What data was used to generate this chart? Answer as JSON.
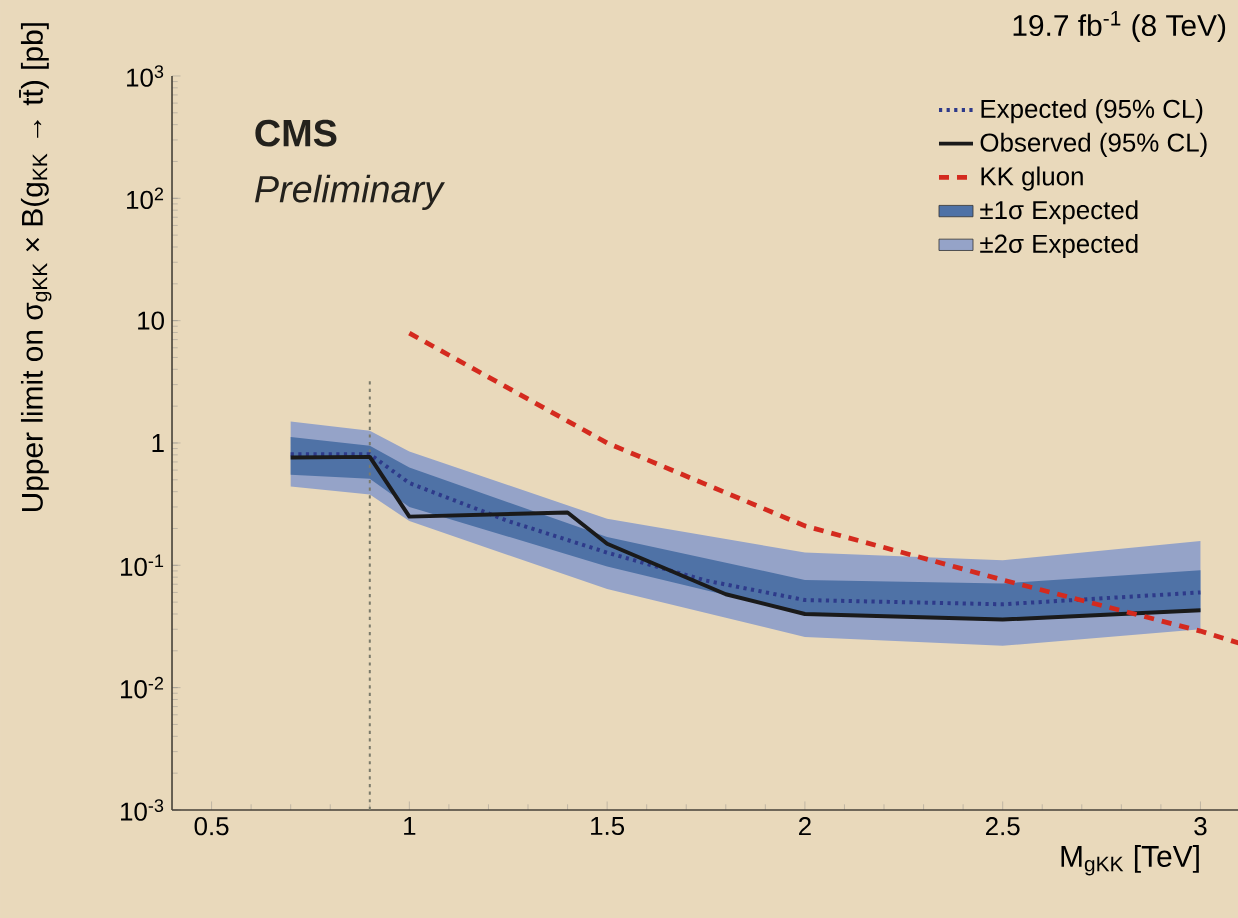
{
  "chart_data": {
    "type": "line",
    "title": "19.7 fb$^{-1}$ (8 TeV)",
    "xlabel": "M$_{gKK}$ [TeV]",
    "ylabel": "Upper limit on σ$_{gKK}$ × B(g$_{KK}$ → tt̄) [pb]",
    "annotations": [
      "CMS",
      "Preliminary"
    ],
    "log": "y",
    "xlim": [
      0.4,
      3.1
    ],
    "ylim": [
      0.001,
      1000
    ],
    "xticks": [
      0.5,
      1,
      1.5,
      2,
      2.5,
      3
    ],
    "yticks": [
      {
        "value": 0.001,
        "label": "10$^{-3}$"
      },
      {
        "value": 0.01,
        "label": "10$^{-2}$"
      },
      {
        "value": 0.1,
        "label": "10$^{-1}$"
      },
      {
        "value": 1,
        "label": "1"
      },
      {
        "value": 10,
        "label": "10"
      },
      {
        "value": 100,
        "label": "10$^{2}$"
      },
      {
        "value": 1000,
        "label": "10$^{3}$"
      }
    ],
    "legend": "top right",
    "grid": false,
    "ref_lines": [
      {
        "axis": "x",
        "value": 0.9,
        "color": "#7a7a6a",
        "line_style": "dotted"
      }
    ],
    "series": [
      {
        "name": "Expected (95% CL)",
        "type": "line",
        "color": "#2e3a8a",
        "line_style": "dotted",
        "x": [
          0.7,
          0.9,
          1.0,
          1.25,
          1.5,
          1.75,
          2.0,
          2.5,
          3.0
        ],
        "values": [
          0.81,
          0.81,
          0.47,
          0.23,
          0.127,
          0.075,
          0.052,
          0.048,
          0.06
        ]
      },
      {
        "name": "Observed (95% CL)",
        "type": "line",
        "color": "#1a1a1a",
        "line_style": "solid",
        "x": [
          0.7,
          0.9,
          1.0,
          1.4,
          1.5,
          1.8,
          2.0,
          2.5,
          3.0
        ],
        "values": [
          0.76,
          0.77,
          0.25,
          0.27,
          0.15,
          0.058,
          0.04,
          0.036,
          0.043
        ]
      },
      {
        "name": "KK gluon",
        "type": "line",
        "color": "#d42a1e",
        "line_style": "dashed",
        "x": [
          1.0,
          1.5,
          2.0,
          2.5,
          3.0,
          3.1
        ],
        "values": [
          7.9,
          1.0,
          0.21,
          0.076,
          0.029,
          0.023
        ]
      },
      {
        "name": "±1σ Expected",
        "color": "#4f72a6",
        "x": [
          0.7,
          0.9,
          1.0,
          1.5,
          2.0,
          2.5,
          3.0
        ],
        "values": [
          null,
          null,
          null,
          null,
          null,
          null,
          null
        ],
        "lower": [
          0.55,
          0.51,
          0.3,
          0.098,
          0.04,
          0.035,
          0.042
        ],
        "upper": [
          1.12,
          0.95,
          0.63,
          0.17,
          0.076,
          0.071,
          0.091
        ]
      },
      {
        "name": "±2σ Expected",
        "color": "#95a3c8",
        "x": [
          0.7,
          0.9,
          1.0,
          1.5,
          2.0,
          2.5,
          3.0
        ],
        "values": [
          null,
          null,
          null,
          null,
          null,
          null,
          null
        ],
        "lower": [
          0.44,
          0.38,
          0.23,
          0.064,
          0.026,
          0.022,
          0.03
        ],
        "upper": [
          1.5,
          1.26,
          0.85,
          0.24,
          0.127,
          0.11,
          0.158
        ]
      }
    ]
  }
}
